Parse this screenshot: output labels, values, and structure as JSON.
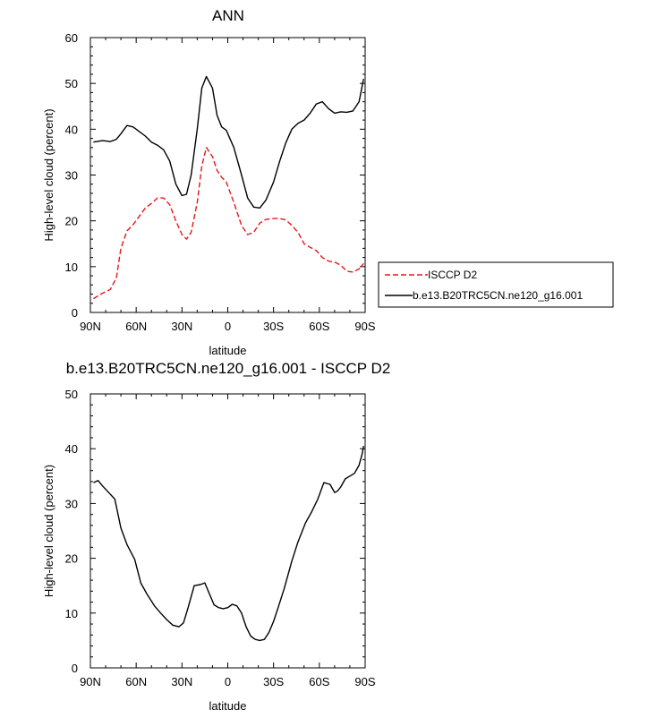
{
  "chart_data": [
    {
      "type": "line",
      "title": "ANN",
      "xlabel": "latitude",
      "ylabel": "High-level cloud (percent)",
      "xlim": [
        90,
        -90
      ],
      "ylim": [
        0,
        60
      ],
      "xticks": [
        90,
        60,
        30,
        0,
        -30,
        -60,
        -90
      ],
      "xtick_labels": [
        "90N",
        "60N",
        "30N",
        "0",
        "30S",
        "60S",
        "90S"
      ],
      "yticks": [
        0,
        10,
        20,
        30,
        40,
        50,
        60
      ],
      "ytick_labels": [
        "0",
        "10",
        "20",
        "30",
        "40",
        "50",
        "60"
      ],
      "legend_position": "right",
      "x": [
        88,
        82,
        77,
        73,
        70,
        66,
        62,
        58,
        54,
        50,
        46,
        42,
        38,
        34,
        30,
        27,
        24,
        20,
        17,
        14,
        10,
        7,
        4,
        1,
        -4,
        -9,
        -13,
        -17,
        -21,
        -25,
        -30,
        -34,
        -38,
        -42,
        -46,
        -50,
        -54,
        -58,
        -62,
        -66,
        -70,
        -74,
        -78,
        -82,
        -86,
        -89
      ],
      "series": [
        {
          "name": "ISCCP D2",
          "color": "#e8161b",
          "dash": "dashed",
          "values": [
            3.0,
            4.2,
            5.0,
            7.5,
            14.0,
            17.8,
            19.2,
            21.0,
            22.8,
            23.8,
            25.0,
            25.0,
            23.5,
            20.0,
            17.0,
            16.0,
            17.5,
            24.0,
            32.0,
            36.0,
            34.0,
            31.0,
            29.5,
            28.5,
            24.0,
            19.0,
            17.0,
            17.5,
            19.5,
            20.3,
            20.5,
            20.5,
            20.2,
            19.0,
            17.5,
            15.0,
            14.2,
            13.5,
            12.0,
            11.2,
            11.0,
            10.3,
            9.0,
            8.8,
            9.5,
            10.7
          ]
        },
        {
          "name": "b.e13.B20TRC5CN.ne120_g16.001",
          "color": "#000000",
          "dash": "solid",
          "values": [
            37.2,
            37.5,
            37.3,
            37.8,
            39.0,
            40.8,
            40.5,
            39.5,
            38.5,
            37.2,
            36.5,
            35.5,
            33.0,
            28.0,
            25.5,
            25.8,
            30.0,
            40.0,
            49.0,
            51.5,
            49.0,
            43.0,
            40.5,
            39.8,
            36.0,
            30.0,
            25.0,
            23.0,
            22.8,
            24.5,
            28.5,
            33.0,
            37.0,
            40.0,
            41.3,
            42.0,
            43.5,
            45.5,
            46.0,
            44.5,
            43.5,
            43.8,
            43.7,
            44.0,
            46.0,
            51.0
          ]
        }
      ]
    },
    {
      "type": "line",
      "title": "b.e13.B20TRC5CN.ne120_g16.001 - ISCCP D2",
      "xlabel": "latitude",
      "ylabel": "High-level cloud (percent)",
      "xlim": [
        90,
        -90
      ],
      "ylim": [
        0,
        50
      ],
      "xticks": [
        90,
        60,
        30,
        0,
        -30,
        -60,
        -90
      ],
      "xtick_labels": [
        "90N",
        "60N",
        "30N",
        "0",
        "30S",
        "60S",
        "90S"
      ],
      "yticks": [
        0,
        10,
        20,
        30,
        40,
        50
      ],
      "ytick_labels": [
        "0",
        "10",
        "20",
        "30",
        "40",
        "50"
      ],
      "x": [
        88,
        85,
        82,
        78,
        74,
        70,
        66,
        61,
        57,
        53,
        48,
        44,
        40,
        36,
        32,
        29,
        26,
        22,
        18,
        15,
        12,
        9,
        6,
        3,
        0,
        -3,
        -6,
        -9,
        -12,
        -15,
        -18,
        -21,
        -24,
        -27,
        -30,
        -33,
        -37,
        -42,
        -46,
        -51,
        -55,
        -59,
        -63,
        -67,
        -70,
        -72,
        -74,
        -77,
        -80,
        -83,
        -86,
        -88,
        -89
      ],
      "series": [
        {
          "name": "",
          "color": "#000000",
          "dash": "solid",
          "values": [
            33.8,
            34.2,
            33.2,
            32.0,
            30.8,
            25.5,
            22.5,
            19.8,
            15.5,
            13.5,
            11.3,
            10.0,
            8.8,
            7.8,
            7.5,
            8.2,
            11.0,
            15.0,
            15.2,
            15.5,
            13.5,
            11.5,
            11.0,
            10.8,
            11.0,
            11.6,
            11.3,
            10.0,
            7.5,
            5.8,
            5.2,
            5.0,
            5.2,
            6.5,
            8.5,
            11.0,
            14.5,
            19.5,
            23.0,
            26.5,
            28.5,
            30.8,
            33.8,
            33.5,
            32.0,
            32.3,
            33.0,
            34.5,
            35.0,
            35.5,
            37.0,
            39.0,
            40.5
          ]
        }
      ]
    }
  ]
}
